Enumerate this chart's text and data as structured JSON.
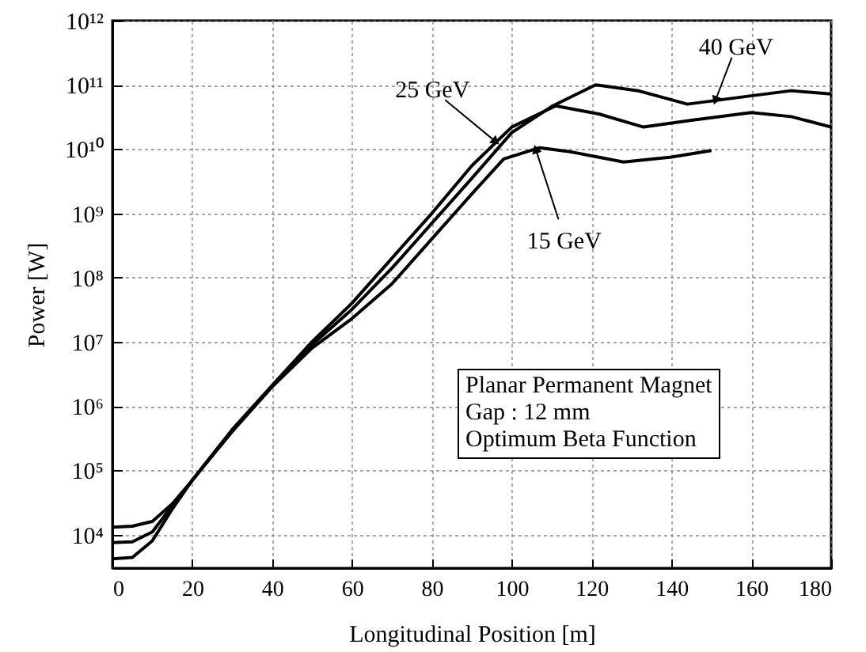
{
  "chart_data": {
    "type": "line",
    "xlabel": "Longitudinal Position [m]",
    "ylabel": "Power [W]",
    "log": "y",
    "grid": true,
    "marker": "none",
    "line_style": "solid",
    "xlim": [
      0,
      180
    ],
    "xticks": [
      0,
      20,
      40,
      60,
      80,
      100,
      120,
      140,
      160,
      180
    ],
    "ylim": [
      3000,
      1000000000000.0
    ],
    "yticks": [
      {
        "value": 10000,
        "label": "10⁴"
      },
      {
        "value": 100000,
        "label": "10⁵"
      },
      {
        "value": 1000000,
        "label": "10⁶"
      },
      {
        "value": 10000000,
        "label": "10⁷"
      },
      {
        "value": 100000000,
        "label": "10⁸"
      },
      {
        "value": 1000000000,
        "label": "10⁹"
      },
      {
        "value": 10000000000,
        "label": "10¹⁰"
      },
      {
        "value": 100000000000,
        "label": "10¹¹"
      },
      {
        "value": 1000000000000,
        "label": "10¹²"
      }
    ],
    "series": [
      {
        "color": "#000000",
        "x": [
          0,
          5,
          10,
          15,
          20,
          30,
          40,
          50,
          60,
          70,
          80,
          90,
          98,
          107,
          115,
          128,
          140,
          150
        ],
        "values": [
          13000,
          13500,
          16000,
          30000,
          70000,
          400000,
          2000000,
          8000000,
          23000000,
          80000000,
          400000000,
          2000000000,
          7000000000,
          10500000000,
          9000000000,
          6300000000,
          7500000000,
          9500000000
        ]
      },
      {
        "color": "#000000",
        "x": [
          0,
          5,
          10,
          15,
          20,
          30,
          40,
          50,
          60,
          70,
          80,
          90,
          100,
          111,
          122,
          133,
          145,
          160,
          170,
          180
        ],
        "values": [
          7500,
          7700,
          11000,
          28000,
          70000,
          430000,
          2100000,
          10000000,
          40000000,
          200000000,
          1000000000,
          5500000000,
          22000000000,
          47000000000,
          35000000000,
          22000000000,
          28000000000,
          37000000000,
          32000000000,
          22000000000
        ]
      },
      {
        "color": "#000000",
        "x": [
          0,
          5,
          10,
          15,
          20,
          30,
          40,
          50,
          60,
          70,
          80,
          90,
          100,
          110,
          121,
          132,
          144,
          158,
          170,
          180
        ],
        "values": [
          4200,
          4400,
          8000,
          25000,
          70000,
          420000,
          2000000,
          9000000,
          32000000,
          140000000,
          700000000,
          3500000000,
          18000000000,
          46000000000,
          100000000000,
          80000000000,
          50000000000,
          65000000000,
          81000000000,
          72000000000
        ]
      }
    ],
    "annotations": [
      {
        "text": "25 GeV",
        "x": 96,
        "y": 13000000000
      },
      {
        "text": "40 GeV",
        "x": 151,
        "y": 57000000000
      },
      {
        "text": "15 GeV",
        "x": 106,
        "y": 10000000000
      },
      "Planar Permanent Magnet",
      "Gap : 12 mm",
      "Optimum Beta Function"
    ]
  }
}
